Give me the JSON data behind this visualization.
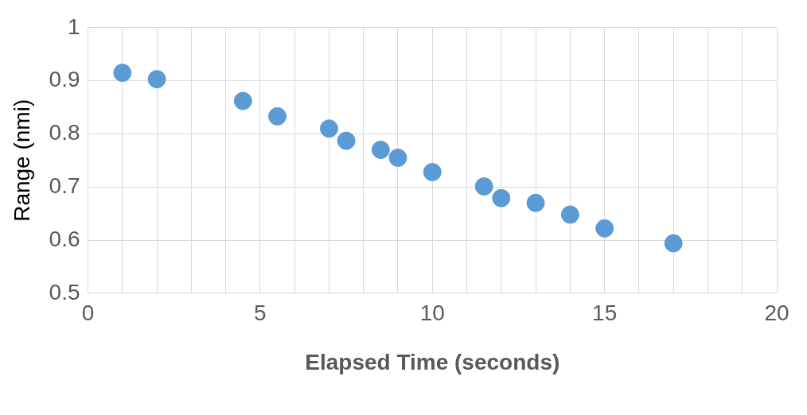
{
  "chart_data": {
    "type": "scatter",
    "xlabel": "Elapsed Time (seconds)",
    "ylabel": "Range (nmi)",
    "x": [
      1,
      2,
      4.5,
      5.5,
      7,
      7.5,
      8.5,
      9,
      10,
      11.5,
      12,
      13,
      14,
      15,
      17
    ],
    "series": [
      {
        "color": "#5b9bd5",
        "values": [
          0.915,
          0.903,
          0.862,
          0.833,
          0.81,
          0.787,
          0.77,
          0.755,
          0.728,
          0.701,
          0.679,
          0.67,
          0.648,
          0.622,
          0.594
        ]
      }
    ],
    "xlim": [
      0,
      20
    ],
    "xticks": [
      0,
      {
        "value": 1,
        "label": null
      },
      {
        "value": 2,
        "label": null
      },
      {
        "value": 3,
        "label": null
      },
      {
        "value": 4,
        "label": null
      },
      5,
      {
        "value": 6,
        "label": null
      },
      {
        "value": 7,
        "label": null
      },
      {
        "value": 8,
        "label": null
      },
      {
        "value": 9,
        "label": null
      },
      10,
      {
        "value": 11,
        "label": null
      },
      {
        "value": 12,
        "label": null
      },
      {
        "value": 13,
        "label": null
      },
      {
        "value": 14,
        "label": null
      },
      15,
      {
        "value": 16,
        "label": null
      },
      {
        "value": 17,
        "label": null
      },
      {
        "value": 18,
        "label": null
      },
      {
        "value": 19,
        "label": null
      },
      20
    ],
    "ylim": [
      0.5,
      1
    ],
    "yticks": [
      0.5,
      0.6,
      0.7,
      0.8,
      0.9,
      1
    ],
    "grid": true,
    "legend": false,
    "marker": "circle"
  }
}
